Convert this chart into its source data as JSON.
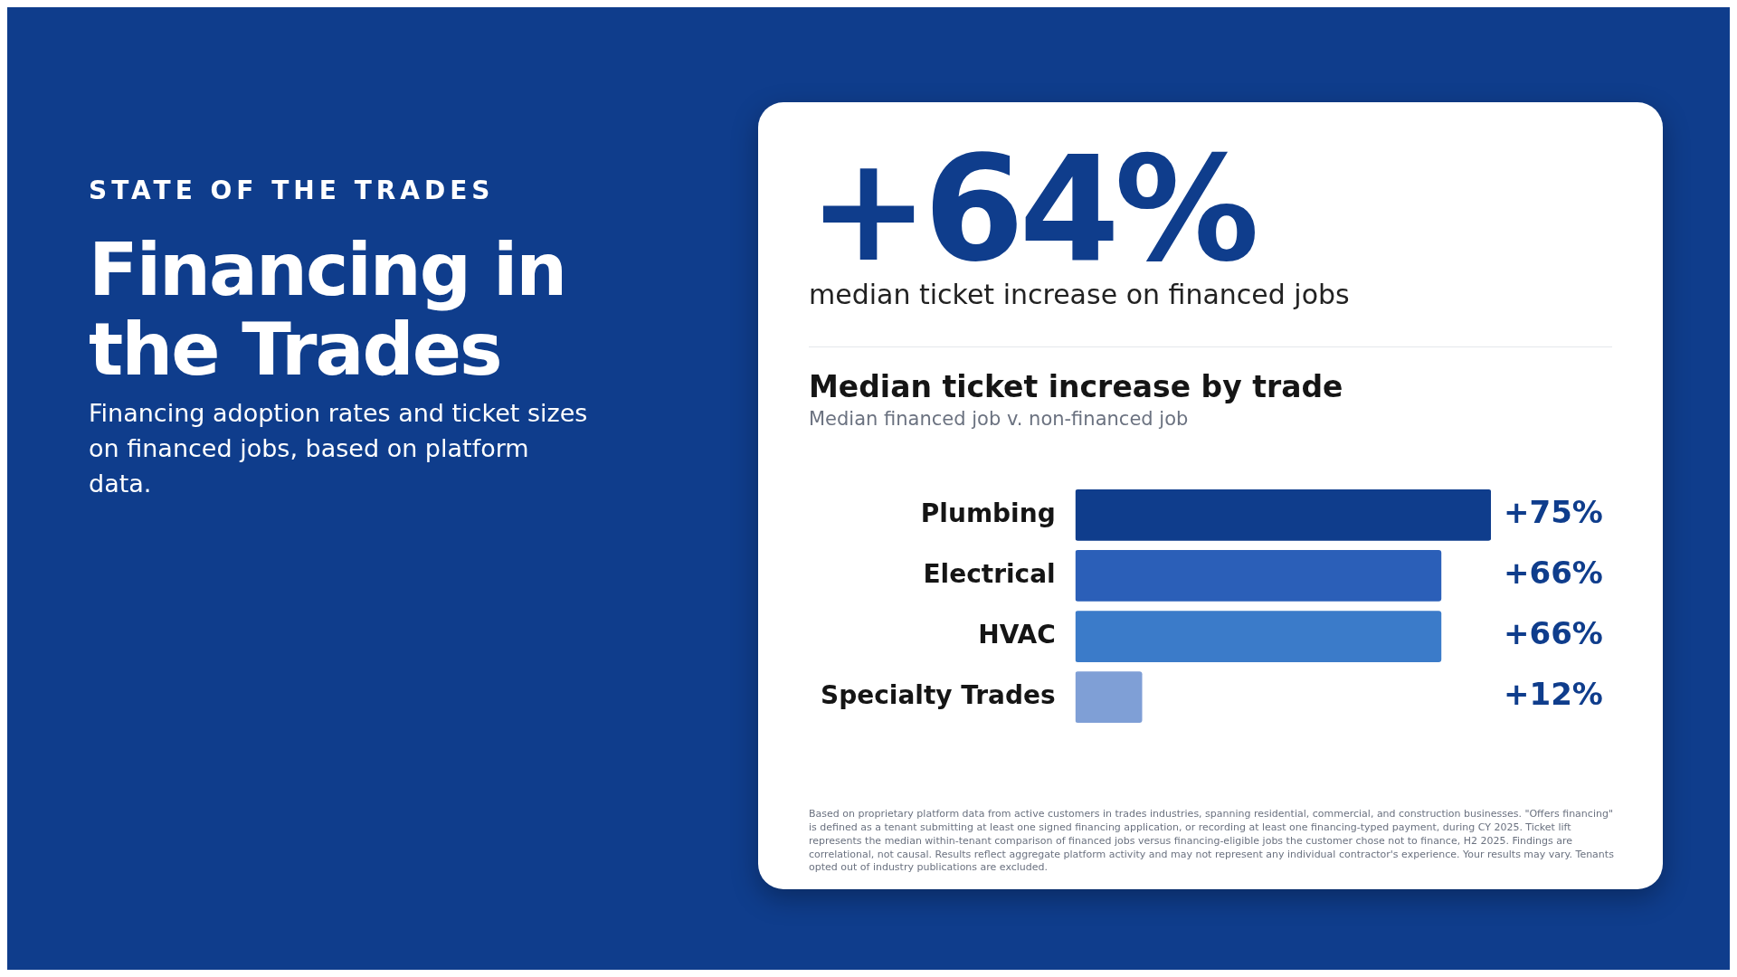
{
  "chart_data": {
    "type": "bar",
    "orientation": "horizontal",
    "title": "Median ticket increase by trade",
    "subtitle": "Median financed job v. non-financed job",
    "categories": [
      "Plumbing",
      "Electrical",
      "HVAC",
      "Specialty Trades"
    ],
    "values": [
      75,
      66,
      66,
      12
    ],
    "colors": [
      "#0f3d8c",
      "#2b5fb8",
      "#3b7bc9",
      "#7f9fd6"
    ],
    "value_labels": [
      "+75%",
      "+66%",
      "+66%",
      "+12%"
    ],
    "grid": false,
    "legend": false,
    "tick_labels": "y",
    "annotations": [
      "STATE OF THE TRADES",
      "Financing in the Trades",
      "Financing adoption rates and ticket sizes on financed jobs, based on platform data.",
      "+64%",
      "median ticket increase on financed jobs",
      "Based on proprietary platform data from active customers in trades industries, spanning residential, commercial, and construction businesses. \"Offers financing\" is defined as a tenant submitting at least one signed financing application, or recording at least one financing-typed payment, during CY 2025. Ticket lift represents the median within-tenant comparison of financed jobs versus financing-eligible jobs the customer chose not to finance, H2 2025. Findings are correlational, not causal. Results reflect aggregate platform activity and may not represent any individual contractor's experience. Your results may vary. Tenants opted out of industry publications are excluded."
    ]
  }
}
